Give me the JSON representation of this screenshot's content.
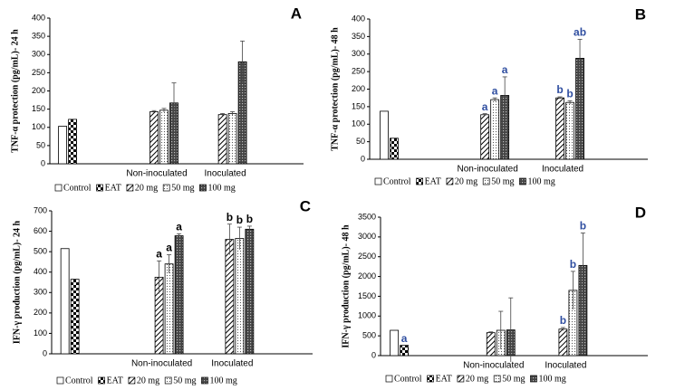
{
  "chart_data": [
    {
      "type": "bar",
      "label": "A",
      "y_label": "TNF-α protection (pg/mL)- 24 h",
      "categories": [
        null,
        "Non-inoculated",
        "Inoculated"
      ],
      "ylim": [
        0,
        400
      ],
      "yticks": [
        0,
        50,
        100,
        150,
        200,
        250,
        300,
        350,
        400
      ],
      "letter_color": "#000000",
      "series": [
        {
          "name": "Control",
          "pattern": "blank",
          "values": [
            103,
            null,
            null
          ],
          "errors": [
            null,
            null,
            null
          ]
        },
        {
          "name": "EAT",
          "pattern": "checker",
          "values": [
            122,
            null,
            null
          ],
          "errors": [
            null,
            null,
            null
          ]
        },
        {
          "name": "20 mg",
          "pattern": "diagonal",
          "values": [
            null,
            143,
            135
          ],
          "errors": [
            null,
            3,
            3
          ]
        },
        {
          "name": "50 mg",
          "pattern": "dots",
          "values": [
            null,
            147,
            138
          ],
          "errors": [
            null,
            5,
            5
          ]
        },
        {
          "name": "100 mg",
          "pattern": "crosshatch",
          "values": [
            null,
            167,
            280
          ],
          "errors": [
            null,
            55,
            57
          ]
        }
      ]
    },
    {
      "type": "bar",
      "label": "B",
      "y_label": "TNF-α protection (pg/mL)- 48 h",
      "categories": [
        null,
        "Non-inoculated",
        "Inoculated"
      ],
      "ylim": [
        0,
        400
      ],
      "yticks": [
        0,
        50,
        100,
        150,
        200,
        250,
        300,
        350,
        400
      ],
      "letter_color": "#2f4ea0",
      "series": [
        {
          "name": "Control",
          "pattern": "blank",
          "values": [
            137,
            null,
            null
          ],
          "errors": [
            null,
            null,
            null
          ],
          "letters": [
            null,
            null,
            null
          ]
        },
        {
          "name": "EAT",
          "pattern": "checker",
          "values": [
            60,
            null,
            null
          ],
          "errors": [
            null,
            null,
            null
          ],
          "letters": [
            null,
            null,
            null
          ]
        },
        {
          "name": "20 mg",
          "pattern": "diagonal",
          "values": [
            null,
            127,
            175
          ],
          "errors": [
            null,
            3,
            3
          ],
          "letters": [
            null,
            "a",
            "b"
          ]
        },
        {
          "name": "50 mg",
          "pattern": "dots",
          "values": [
            null,
            170,
            162
          ],
          "errors": [
            null,
            5,
            5
          ],
          "letters": [
            null,
            "a",
            "b"
          ]
        },
        {
          "name": "100 mg",
          "pattern": "crosshatch",
          "values": [
            null,
            182,
            288
          ],
          "errors": [
            null,
            53,
            54
          ],
          "letters": [
            null,
            "a",
            "ab"
          ]
        }
      ]
    },
    {
      "type": "bar",
      "label": "C",
      "y_label": "IFN-γ production (pg/mL)- 24 h",
      "categories": [
        null,
        "Non-inoculated",
        "Inoculated"
      ],
      "ylim": [
        0,
        700
      ],
      "yticks": [
        0,
        100,
        200,
        300,
        400,
        500,
        600,
        700
      ],
      "letter_color": "#000000",
      "series": [
        {
          "name": "Control",
          "pattern": "blank",
          "values": [
            515,
            null,
            null
          ],
          "errors": [
            null,
            null,
            null
          ],
          "letters": [
            null,
            null,
            null
          ]
        },
        {
          "name": "EAT",
          "pattern": "checker",
          "values": [
            365,
            null,
            null
          ],
          "errors": [
            null,
            null,
            null
          ],
          "letters": [
            null,
            null,
            null
          ]
        },
        {
          "name": "20 mg",
          "pattern": "diagonal",
          "values": [
            null,
            375,
            560
          ],
          "errors": [
            null,
            80,
            75
          ],
          "letters": [
            null,
            "a",
            "b"
          ]
        },
        {
          "name": "50 mg",
          "pattern": "dots",
          "values": [
            null,
            440,
            565
          ],
          "errors": [
            null,
            45,
            55
          ],
          "letters": [
            null,
            "a",
            "b"
          ]
        },
        {
          "name": "100 mg",
          "pattern": "crosshatch",
          "values": [
            null,
            578,
            610
          ],
          "errors": [
            null,
            10,
            15
          ],
          "letters": [
            null,
            "a",
            "b"
          ]
        }
      ]
    },
    {
      "type": "bar",
      "label": "D",
      "y_label": "IFN-γ production (pg/mL)- 48 h",
      "categories": [
        null,
        "Non-inoculated",
        "Inoculated"
      ],
      "ylim": [
        0,
        3500
      ],
      "yticks": [
        0,
        500,
        1000,
        1500,
        2000,
        2500,
        3000,
        3500
      ],
      "letter_color": "#2f4ea0",
      "series": [
        {
          "name": "Control",
          "pattern": "blank",
          "values": [
            640,
            null,
            null
          ],
          "errors": [
            null,
            null,
            null
          ],
          "letters": [
            null,
            null,
            null
          ]
        },
        {
          "name": "EAT",
          "pattern": "checker",
          "values": [
            260,
            null,
            null
          ],
          "errors": [
            null,
            null,
            null
          ],
          "letters": [
            "a",
            null,
            null
          ]
        },
        {
          "name": "20 mg",
          "pattern": "diagonal",
          "values": [
            null,
            580,
            670
          ],
          "errors": [
            null,
            20,
            40
          ],
          "letters": [
            null,
            null,
            "b"
          ]
        },
        {
          "name": "50 mg",
          "pattern": "dots",
          "values": [
            null,
            640,
            1650
          ],
          "errors": [
            null,
            480,
            480
          ],
          "letters": [
            null,
            null,
            "b"
          ]
        },
        {
          "name": "100 mg",
          "pattern": "crosshatch",
          "values": [
            null,
            650,
            2280
          ],
          "errors": [
            null,
            810,
            820
          ],
          "letters": [
            null,
            null,
            "b"
          ]
        }
      ]
    }
  ]
}
